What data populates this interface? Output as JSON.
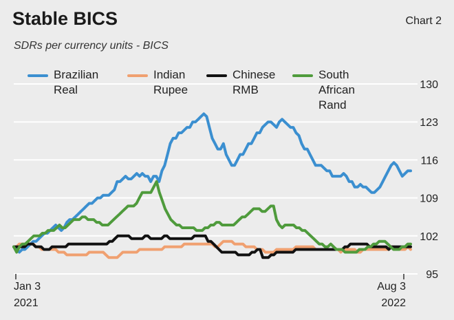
{
  "title": "Stable BICS",
  "chart_label": "Chart 2",
  "subtitle": "SDRs per currency units - BICS",
  "colors": {
    "brazilian_real": "#3b8fd0",
    "indian_rupee": "#f0a070",
    "chinese_rmb": "#111111",
    "south_african_rand": "#4f9b3c",
    "grid": "#ffffff",
    "background": "#ececec"
  },
  "chart_data": {
    "type": "line",
    "title": "Stable BICS",
    "subtitle": "SDRs per currency units - BICS",
    "x_start_label": "Jan 3\n2021",
    "x_end_label": "Aug 3\n2022",
    "x_ticks": [
      {
        "label_line1": "Jan 3",
        "label_line2": "2021",
        "position": "start"
      },
      {
        "label_line1": "Aug 3",
        "label_line2": "2022",
        "position": "end"
      }
    ],
    "ylim": [
      95,
      130
    ],
    "y_ticks": [
      95,
      102,
      109,
      116,
      123,
      130
    ],
    "y_axis_side": "right",
    "grid": true,
    "legend_position": "top",
    "series": [
      {
        "name": "Brazilian Real",
        "color_key": "brazilian_real",
        "values": [
          100,
          99.5,
          99,
          99.5,
          99.5,
          100,
          100.5,
          101,
          101,
          101.5,
          102,
          102.5,
          102.5,
          103,
          103.5,
          104,
          103.5,
          103,
          103.5,
          104.5,
          105,
          105,
          105.5,
          106,
          106.5,
          107,
          107.5,
          108,
          108,
          108.5,
          109,
          109,
          109.5,
          109.5,
          109.5,
          110,
          110.5,
          112,
          112,
          112.5,
          113,
          112.5,
          112.5,
          113,
          113.5,
          113,
          113.5,
          113,
          113,
          112,
          113,
          113,
          112,
          114,
          115,
          117,
          119,
          120,
          120,
          121,
          121,
          121.5,
          122,
          122,
          123,
          123,
          123.5,
          124,
          124.5,
          124,
          122,
          120,
          119,
          118,
          118,
          119,
          117,
          116,
          115,
          115,
          116,
          117,
          117,
          118,
          119,
          119,
          120,
          121,
          121,
          122,
          122.5,
          123,
          123,
          122.5,
          122,
          123,
          123.5,
          123,
          122.5,
          122,
          122,
          121,
          120.5,
          119,
          118,
          118,
          117,
          116,
          115,
          115,
          115,
          114.5,
          114,
          114,
          113,
          113,
          113,
          113,
          113.5,
          113,
          112,
          112,
          111,
          111,
          111.5,
          111,
          111,
          110.5,
          110,
          110,
          110.5,
          111,
          112,
          113,
          114,
          115,
          115.5,
          115,
          114,
          113,
          113.5,
          114,
          114
        ]
      },
      {
        "name": "Indian Rupee",
        "color_key": "indian_rupee",
        "values": [
          100,
          100,
          100.5,
          100.5,
          100.5,
          100.5,
          100.5,
          100.5,
          100,
          100,
          99.5,
          99.5,
          99.5,
          99.5,
          99.5,
          99.5,
          99,
          99,
          99,
          98.5,
          98.5,
          98.5,
          98.5,
          98.5,
          98.5,
          98.5,
          98.5,
          99,
          99,
          99,
          99,
          99,
          99,
          98.5,
          98,
          98,
          98,
          98,
          98.5,
          99,
          99,
          99,
          99,
          99,
          99,
          99.5,
          99.5,
          99.5,
          99.5,
          99.5,
          99.5,
          99.5,
          99.5,
          99.5,
          100,
          100,
          100,
          100,
          100,
          100,
          100,
          100.5,
          100.5,
          100.5,
          100.5,
          100.5,
          100.5,
          100.5,
          100.5,
          100.5,
          100.5,
          100.5,
          100,
          100,
          100.5,
          101,
          101,
          101,
          101,
          100.5,
          100.5,
          100.5,
          100.5,
          100,
          100,
          100,
          100,
          99.5,
          99.5,
          99.5,
          99,
          99,
          99,
          99,
          99.5,
          99.5,
          99.5,
          99.5,
          99.5,
          99.5,
          99.5,
          100,
          100,
          100,
          100,
          100,
          100,
          100,
          99.5,
          99.5,
          99.5,
          99.5,
          99.5,
          99.5,
          99.5,
          99.5,
          99.5,
          99,
          99.5,
          99.5,
          99.5,
          99.5,
          99.5,
          99,
          99,
          99.5,
          99.5,
          99.5,
          99.5,
          99.5,
          99.5,
          99.5,
          99.5,
          99.5,
          99.5,
          100,
          100,
          99.5,
          99.5,
          99.5,
          99.5,
          100,
          99.5
        ]
      },
      {
        "name": "Chinese RMB",
        "color_key": "chinese_rmb",
        "values": [
          100,
          100,
          100,
          100,
          100,
          100.5,
          100.5,
          100.5,
          100,
          100,
          100,
          99.5,
          99.5,
          99.5,
          100,
          100,
          100,
          100,
          100,
          100,
          100.5,
          100.5,
          100.5,
          100.5,
          100.5,
          100.5,
          100.5,
          100.5,
          100.5,
          100.5,
          100.5,
          100.5,
          100.5,
          100.5,
          100.5,
          101,
          101,
          101.5,
          102,
          102,
          102,
          102,
          102,
          101.5,
          101.5,
          101.5,
          101.5,
          101.5,
          102,
          102,
          101.5,
          101.5,
          101.5,
          101.5,
          101.5,
          102,
          102,
          101.5,
          101.5,
          101.5,
          101.5,
          101.5,
          101.5,
          101.5,
          101.5,
          101.5,
          102,
          102,
          102,
          102,
          102,
          101,
          101,
          100.5,
          100,
          99.5,
          99,
          99,
          99,
          99,
          99,
          99,
          98.5,
          98.5,
          98.5,
          98.5,
          98.5,
          99,
          99,
          99.5,
          99.5,
          98,
          98,
          98,
          98.5,
          98.5,
          99,
          99,
          99,
          99,
          99,
          99,
          99,
          99.5,
          99.5,
          99.5,
          99.5,
          99.5,
          99.5,
          99.5,
          99.5,
          99.5,
          99.5,
          99.5,
          99.5,
          99.5,
          99.5,
          99.5,
          99.5,
          99.5,
          99.5,
          100,
          100,
          100.5,
          100.5,
          100.5,
          100.5,
          100.5,
          100.5,
          100.5,
          100,
          100,
          100,
          100,
          100,
          100,
          100,
          99.5,
          100,
          100,
          100,
          100,
          100,
          100,
          100,
          100
        ]
      },
      {
        "name": "South African Rand",
        "color_key": "south_african_rand",
        "values": [
          100,
          99,
          100,
          100.5,
          100.5,
          101,
          101.5,
          102,
          102,
          102,
          102.5,
          102.5,
          103,
          103,
          103,
          103.5,
          104,
          103.5,
          103.5,
          104,
          104.5,
          105,
          105,
          105,
          105.5,
          105.5,
          105,
          105,
          105,
          104.5,
          104.5,
          104,
          104,
          104,
          104.5,
          105,
          105.5,
          106,
          106.5,
          107,
          107.5,
          107.5,
          107.5,
          108,
          109,
          110,
          110,
          110,
          110,
          111,
          112,
          110,
          108.5,
          107,
          106,
          105,
          104.5,
          104,
          104,
          103.5,
          103.5,
          103.5,
          103.5,
          103.5,
          103,
          103,
          103,
          103.5,
          103.5,
          104,
          104,
          104.5,
          104.5,
          104,
          104,
          104,
          104,
          104,
          104.5,
          105,
          105.5,
          105.5,
          106,
          106.5,
          107,
          107,
          107,
          106.5,
          106.5,
          107,
          107.5,
          107.5,
          105,
          104,
          103.5,
          104,
          104,
          104,
          104,
          103.5,
          103.5,
          103,
          103,
          102.5,
          102,
          101.5,
          101,
          100.5,
          100.5,
          100,
          100,
          100.5,
          100,
          99.5,
          99.5,
          99.5,
          99,
          99,
          99,
          99,
          99,
          99.5,
          99.5,
          99.5,
          100,
          100,
          100.5,
          100.5,
          101,
          101,
          101,
          100.5,
          100,
          99.5,
          99.5,
          99.5,
          100,
          100,
          100.5,
          100.5
        ]
      }
    ]
  }
}
